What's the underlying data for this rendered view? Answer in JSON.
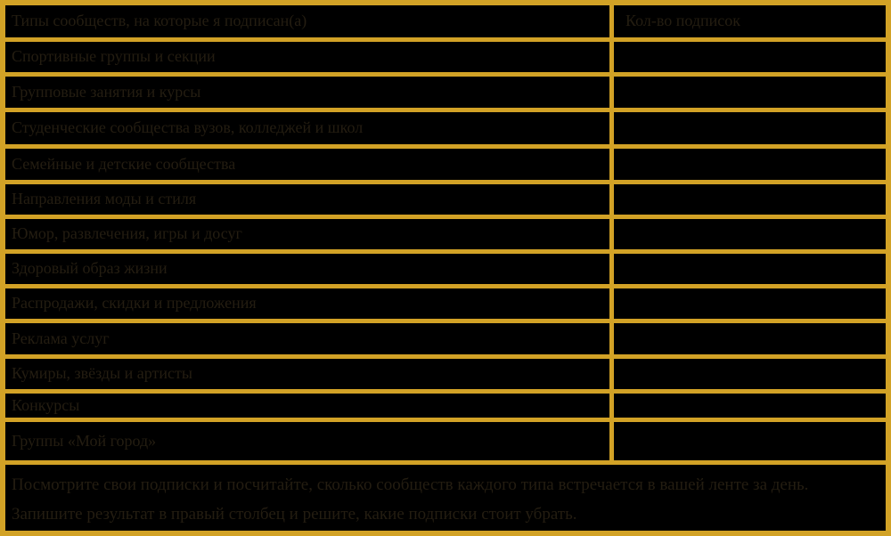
{
  "colors": {
    "background": "#000000",
    "border_gold": "#d2a226",
    "text_ink": "#241d11"
  },
  "table": {
    "header": {
      "category": "Типы сообществ, на которые я подписан(а)",
      "count": "Кол-во подписок"
    },
    "rows": [
      "Спортивные группы и секции",
      "Групповые занятия и курсы",
      "Студенческие сообщества вузов, колледжей и школ",
      "Семейные и детские сообщества",
      "Направления моды и стиля",
      "Юмор, развлечения, игры и досуг",
      "Здоровый образ жизни",
      "Распродажи, скидки и предложения",
      "Реклама услуг",
      "Кумиры, звёзды и артисты",
      "Конкурсы",
      "Группы «Мой город»"
    ],
    "footer_lines": [
      "Посмотрите свои подписки и посчитайте, сколько сообществ каждого типа встречается в вашей ленте за день.",
      "Запишите результат в правый столбец и решите, какие подписки стоит убрать."
    ]
  }
}
